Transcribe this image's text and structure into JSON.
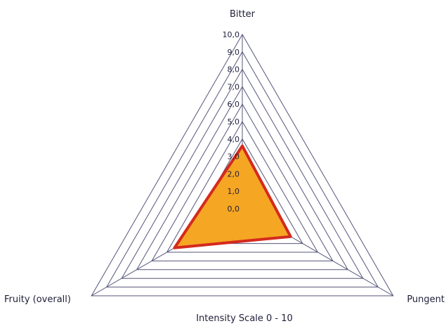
{
  "chart_data": {
    "type": "radar",
    "title": "",
    "caption": "Intensity Scale 0 - 10",
    "axes": [
      "Bitter",
      "Pungent",
      "Fruity (overall)"
    ],
    "range": [
      0,
      10
    ],
    "ticks": [
      "0,0",
      "1,0",
      "2,0",
      "3,0",
      "4,0",
      "5,0",
      "6,0",
      "7,0",
      "8,0",
      "9,0",
      "10,0"
    ],
    "series": [
      {
        "values": [
          3.6,
          3.2,
          4.5
        ]
      }
    ],
    "colors": {
      "grid": "#55557a",
      "fill": "#f5a623",
      "stroke": "#d42a1e"
    },
    "grid": true,
    "legend": "none"
  }
}
